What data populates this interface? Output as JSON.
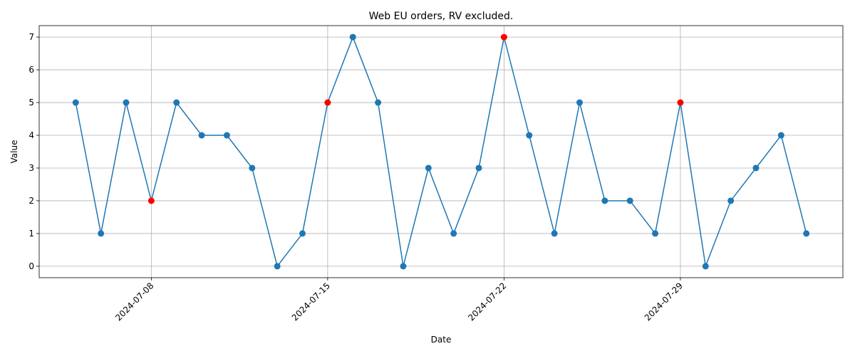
{
  "chart_data": {
    "type": "line",
    "title": "Web EU orders, RV excluded.",
    "xlabel": "Date",
    "ylabel": "Value",
    "x": [
      "2024-07-05",
      "2024-07-06",
      "2024-07-07",
      "2024-07-08",
      "2024-07-09",
      "2024-07-10",
      "2024-07-11",
      "2024-07-12",
      "2024-07-13",
      "2024-07-14",
      "2024-07-15",
      "2024-07-16",
      "2024-07-17",
      "2024-07-18",
      "2024-07-19",
      "2024-07-20",
      "2024-07-21",
      "2024-07-22",
      "2024-07-23",
      "2024-07-24",
      "2024-07-25",
      "2024-07-26",
      "2024-07-27",
      "2024-07-28",
      "2024-07-29",
      "2024-07-30",
      "2024-07-31",
      "2024-08-01",
      "2024-08-02",
      "2024-08-03"
    ],
    "values": [
      5,
      1,
      5,
      2,
      5,
      4,
      4,
      3,
      0,
      1,
      5,
      7,
      5,
      0,
      3,
      1,
      3,
      7,
      4,
      1,
      5,
      2,
      2,
      1,
      5,
      0,
      2,
      3,
      4,
      1
    ],
    "color": "#1f77b4",
    "point_colors": [
      "#1f77b4",
      "#1f77b4",
      "#1f77b4",
      "#ff0000",
      "#1f77b4",
      "#1f77b4",
      "#1f77b4",
      "#1f77b4",
      "#1f77b4",
      "#1f77b4",
      "#ff0000",
      "#1f77b4",
      "#1f77b4",
      "#1f77b4",
      "#1f77b4",
      "#1f77b4",
      "#1f77b4",
      "#ff0000",
      "#1f77b4",
      "#1f77b4",
      "#1f77b4",
      "#1f77b4",
      "#1f77b4",
      "#1f77b4",
      "#ff0000",
      "#1f77b4",
      "#1f77b4",
      "#1f77b4",
      "#1f77b4",
      "#1f77b4"
    ],
    "xlim": [
      "2024-07-03T13:12:00Z",
      "2024-08-04T10:48:00Z"
    ],
    "xticks": [
      "2024-07-08",
      "2024-07-15",
      "2024-07-22",
      "2024-07-29"
    ],
    "ylim": [
      -0.35,
      7.35
    ],
    "yticks": [
      0,
      1,
      2,
      3,
      4,
      5,
      6,
      7
    ],
    "grid": true
  }
}
